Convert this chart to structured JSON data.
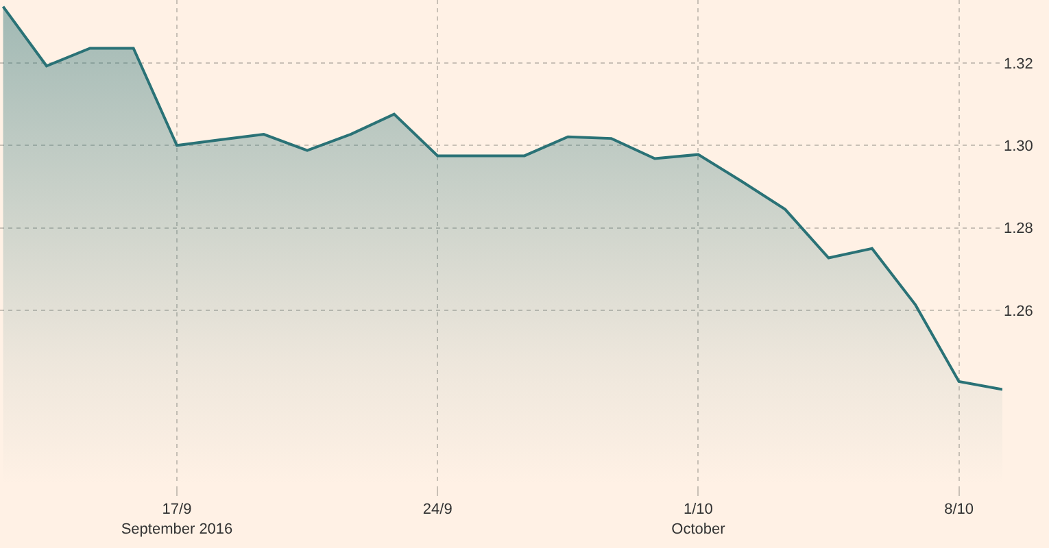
{
  "chart_data": {
    "type": "area",
    "x": [
      "2016-09-12T08:00",
      "2016-09-13T12:00",
      "2016-09-14T16:00",
      "2016-09-15T20:00",
      "2016-09-17T00:00",
      "2016-09-18T04:00",
      "2016-09-19T08:00",
      "2016-09-20T12:00",
      "2016-09-21T16:00",
      "2016-09-22T20:00",
      "2016-09-24T00:00",
      "2016-09-25T04:00",
      "2016-09-26T08:00",
      "2016-09-27T12:00",
      "2016-09-28T16:00",
      "2016-09-29T20:00",
      "2016-10-01T00:00",
      "2016-10-02T04:00",
      "2016-10-03T08:00",
      "2016-10-04T12:00",
      "2016-10-05T16:00",
      "2016-10-06T20:00",
      "2016-10-08T00:00",
      "2016-10-09T04:00"
    ],
    "series": [
      {
        "color": "#2a7276",
        "values": [
          1.3337,
          1.3193,
          1.3236,
          1.3236,
          1.3,
          1.3014,
          1.3027,
          1.2988,
          1.3027,
          1.3076,
          1.2975,
          1.2975,
          1.2975,
          1.3021,
          1.3017,
          1.2968,
          1.2978,
          1.2913,
          1.2845,
          1.2727,
          1.275,
          1.2613,
          1.2427,
          1.2408
        ]
      }
    ],
    "xlim": [
      "2016-09-12T06:00",
      "2016-10-09T04:00"
    ],
    "xticks": [
      {
        "value": "2016-09-17",
        "label": "17/9\nSeptember 2016"
      },
      {
        "value": "2016-09-24",
        "label": "24/9"
      },
      {
        "value": "2016-10-01",
        "label": "1/10\nOctober"
      },
      {
        "value": "2016-10-08",
        "label": "8/10"
      }
    ],
    "ylim": [
      1.2176,
      1.3353
    ],
    "yticks": [
      {
        "value": 1.26,
        "label": "1.26"
      },
      {
        "value": 1.28,
        "label": "1.28"
      },
      {
        "value": 1.3,
        "label": "1.30"
      },
      {
        "value": 1.32,
        "label": "1.32"
      }
    ],
    "grid": true,
    "line_style": "solid",
    "marker": "none"
  }
}
